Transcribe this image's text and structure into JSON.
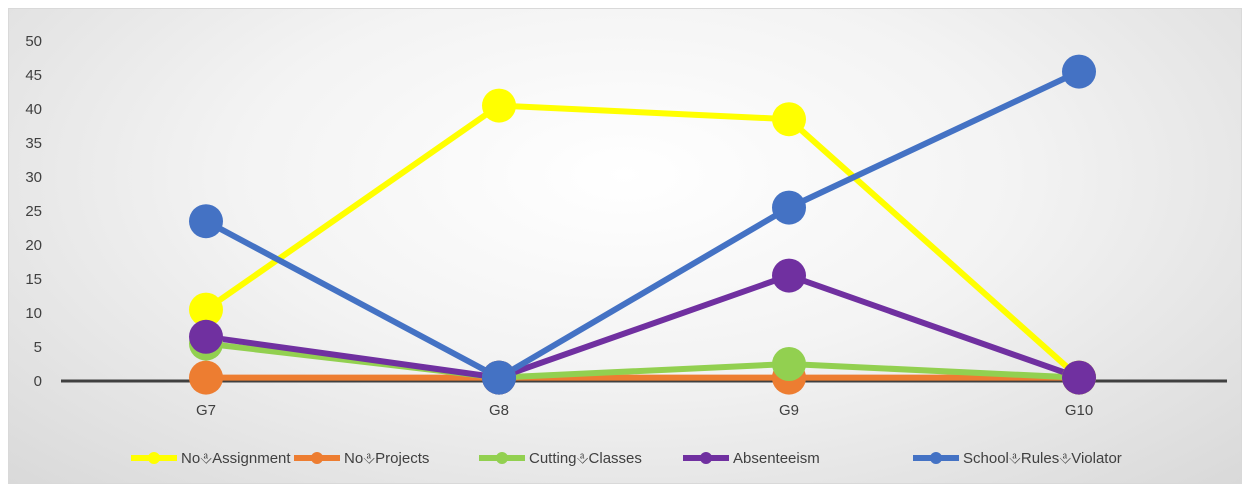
{
  "chart_data": {
    "type": "line",
    "categories": [
      "G7",
      "G8",
      "G9",
      "G10"
    ],
    "ylim": [
      0,
      50
    ],
    "yticks": [
      "0",
      "5",
      "10",
      "15",
      "20",
      "25",
      "30",
      "35",
      "40",
      "45",
      "50"
    ],
    "grid": false,
    "legend_position": "bottom",
    "series": [
      {
        "name": "No Assignment",
        "legend_label": "No⎀Assignment",
        "color": "#ffff00",
        "values": [
          10.5,
          40.5,
          38.5,
          0.5
        ]
      },
      {
        "name": "No Projects",
        "legend_label": "No⎀Projects",
        "color": "#ed7d31",
        "values": [
          0.5,
          0.5,
          0.5,
          0.5
        ]
      },
      {
        "name": "Cutting Classes",
        "legend_label": "Cutting⎀Classes",
        "color": "#92d050",
        "values": [
          5.5,
          0.5,
          2.5,
          0.5
        ]
      },
      {
        "name": "Absenteeism",
        "legend_label": "Absenteeism",
        "color": "#7030a0",
        "values": [
          6.5,
          0.5,
          15.5,
          0.5
        ]
      },
      {
        "name": "School Rules Violator",
        "legend_label": "School⎀Rules⎀Violator",
        "color": "#4472c4",
        "values": [
          23.5,
          0.5,
          25.5,
          45.5
        ]
      }
    ]
  }
}
